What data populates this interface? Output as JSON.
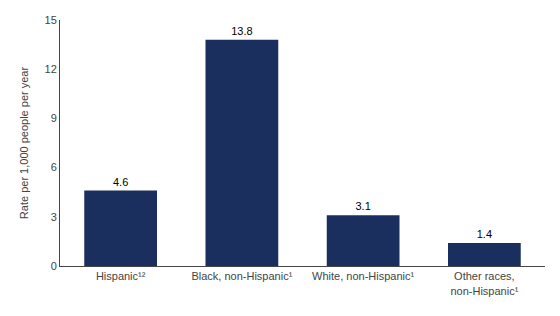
{
  "chart_data": {
    "type": "bar",
    "categories": [
      "Hispanic¹²",
      "Black, non-Hispanic¹",
      "White, non-Hispanic¹",
      "Other races,\nnon-Hispanic¹"
    ],
    "values": [
      4.6,
      13.8,
      3.1,
      1.4
    ],
    "color": "#1b2f5e",
    "ylabel": "Rate per 1,000 people per year",
    "ylim": [
      0,
      15
    ],
    "yticks": [
      0,
      3,
      6,
      9,
      12,
      15
    ],
    "grid": false,
    "data_labels": true
  }
}
